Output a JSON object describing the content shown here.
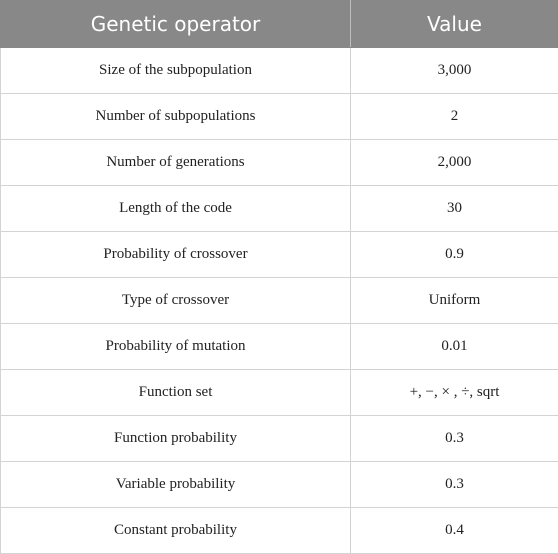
{
  "table": {
    "headers": [
      "Genetic operator",
      "Value"
    ],
    "rows": [
      {
        "operator": "Size of the subpopulation",
        "value": "3,000"
      },
      {
        "operator": "Number of subpopulations",
        "value": "2"
      },
      {
        "operator": "Number of generations",
        "value": "2,000"
      },
      {
        "operator": "Length of the code",
        "value": "30"
      },
      {
        "operator": "Probability of crossover",
        "value": "0.9"
      },
      {
        "operator": "Type of crossover",
        "value": "Uniform"
      },
      {
        "operator": "Probability of mutation",
        "value": "0.01"
      },
      {
        "operator": "Function set",
        "value": "+, −, × , ÷, sqrt"
      },
      {
        "operator": "Function probability",
        "value": "0.3"
      },
      {
        "operator": "Variable probability",
        "value": "0.3"
      },
      {
        "operator": "Constant probability",
        "value": "0.4"
      }
    ]
  }
}
